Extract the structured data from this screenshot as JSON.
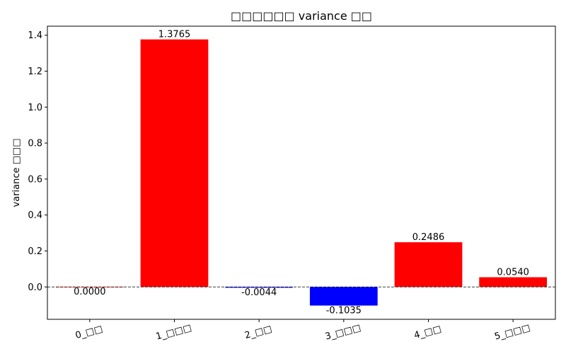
{
  "chart_data": {
    "type": "bar",
    "title": "□□□□□□ variance □□",
    "xlabel": "",
    "ylabel": "variance □□□",
    "categories": [
      "0_□□",
      "1_□□□",
      "2_□□",
      "3_□□□",
      "4_□□",
      "5_□□□"
    ],
    "values": [
      0.0,
      1.3765,
      -0.0044,
      -0.1035,
      0.2486,
      0.054
    ],
    "value_labels": [
      "0.0000",
      "1.3765",
      "-0.0044",
      "-0.1035",
      "0.2486",
      "0.0540"
    ],
    "ylim": [
      -0.18,
      1.45
    ],
    "yticks": [
      0.0,
      0.2,
      0.4,
      0.6,
      0.8,
      1.0,
      1.2,
      1.4
    ],
    "ytick_labels": [
      "0.0",
      "0.2",
      "0.4",
      "0.6",
      "0.8",
      "1.0",
      "1.2",
      "1.4"
    ],
    "grid": false,
    "zero_line": "dashed",
    "colors": {
      "positive": "#ff0000",
      "negative": "#0000ff"
    }
  }
}
